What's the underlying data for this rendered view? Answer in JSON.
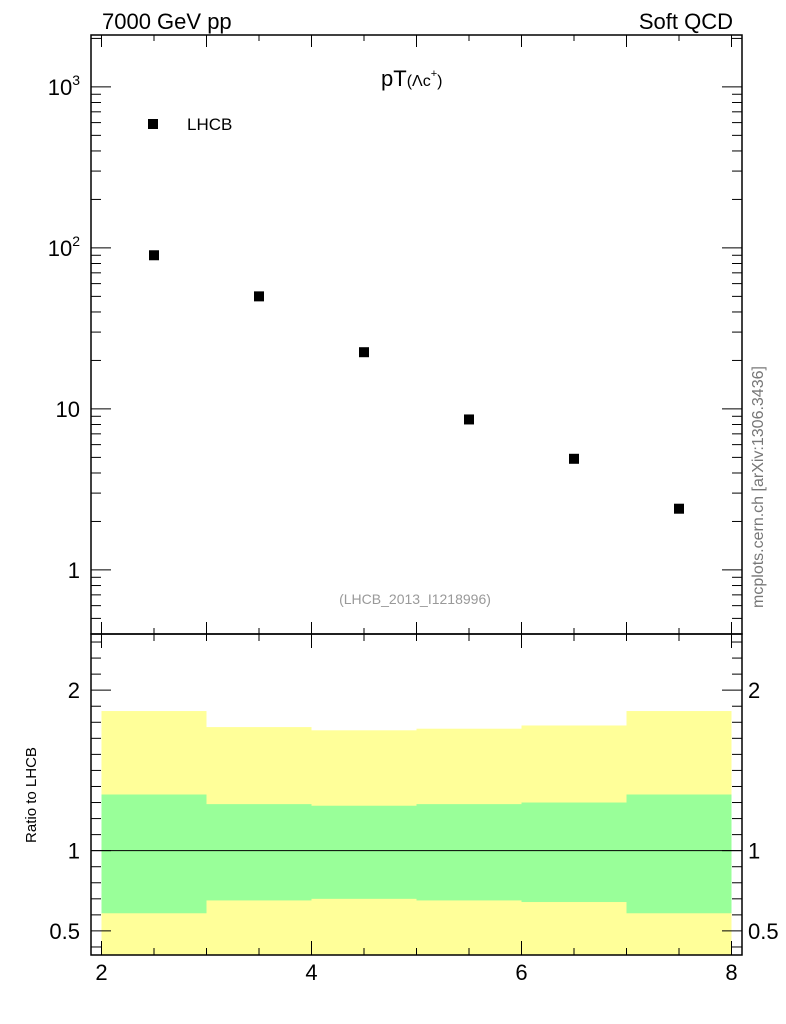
{
  "header": {
    "left": "7000 GeV pp",
    "right": "Soft QCD"
  },
  "side_label": "mcplots.cern.ch [arXiv:1306.3436]",
  "chart_data": [
    {
      "type": "scatter",
      "title_main": "pT",
      "title_sub": "(Λc",
      "title_sup": "+",
      "title_close": ")",
      "reference": "(LHCB_2013_I1218996)",
      "log_y": true,
      "ylim": [
        0.4,
        2100
      ],
      "xlim": [
        1.9,
        8.1
      ],
      "y_tick_labels": [
        {
          "value": 1000,
          "base": "10",
          "exp": "3"
        },
        {
          "value": 100,
          "base": "10",
          "exp": "2"
        },
        {
          "value": 10,
          "base": "10",
          "exp": ""
        },
        {
          "value": 1,
          "base": "1",
          "exp": ""
        }
      ],
      "series": [
        {
          "name": "LHCB",
          "x": [
            2.5,
            3.5,
            4.5,
            5.5,
            6.5,
            7.5
          ],
          "y": [
            90,
            50,
            22.5,
            8.6,
            4.9,
            2.4
          ]
        }
      ],
      "legend_position": "top-left"
    },
    {
      "type": "area",
      "ylabel": "Ratio to LHCB",
      "ylim": [
        0.35,
        2.35
      ],
      "xlim": [
        1.9,
        8.1
      ],
      "x_ticks": [
        2,
        4,
        6,
        8
      ],
      "y_ticks": [
        2,
        1,
        0.5
      ],
      "y_tick_labels": [
        "2",
        "1",
        "0.5"
      ],
      "reference_line": 1,
      "bins": [
        {
          "x0": 2,
          "x1": 3,
          "inner_lo": 0.61,
          "inner_hi": 1.35,
          "outer_lo": 0.35,
          "outer_hi": 1.87
        },
        {
          "x0": 3,
          "x1": 4,
          "inner_lo": 0.69,
          "inner_hi": 1.29,
          "outer_lo": 0.35,
          "outer_hi": 1.77
        },
        {
          "x0": 4,
          "x1": 5,
          "inner_lo": 0.7,
          "inner_hi": 1.28,
          "outer_lo": 0.35,
          "outer_hi": 1.75
        },
        {
          "x0": 5,
          "x1": 6,
          "inner_lo": 0.69,
          "inner_hi": 1.29,
          "outer_lo": 0.35,
          "outer_hi": 1.76
        },
        {
          "x0": 6,
          "x1": 7,
          "inner_lo": 0.68,
          "inner_hi": 1.3,
          "outer_lo": 0.35,
          "outer_hi": 1.78
        },
        {
          "x0": 7,
          "x1": 8,
          "inner_lo": 0.61,
          "inner_hi": 1.35,
          "outer_lo": 0.35,
          "outer_hi": 1.87
        }
      ],
      "colors": {
        "inner": "#99ff99",
        "outer": "#ffff99"
      }
    }
  ]
}
